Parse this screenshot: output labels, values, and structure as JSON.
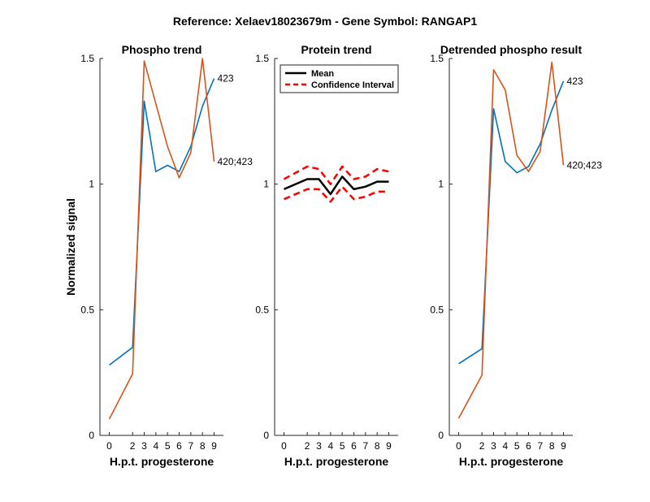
{
  "figure": {
    "title": "Reference:  Xelaev18023679m - Gene Symbol:  RANGAP1"
  },
  "colors": {
    "blue": "#0072BD",
    "orange": "#D95319",
    "black": "#000000",
    "red": "#FF0000"
  },
  "chart_data": [
    {
      "type": "line",
      "title": "Phospho trend",
      "xlabel": "H.p.t. progesterone",
      "ylabel": "Normalized signal",
      "x": [
        0,
        2,
        3,
        4,
        5,
        6,
        7,
        8,
        9
      ],
      "xlim": [
        -0.8,
        9.8
      ],
      "ylim": [
        0,
        1.5
      ],
      "xticks": [
        "0",
        "2",
        "3",
        "4",
        "5",
        "6",
        "7",
        "8",
        "9"
      ],
      "yticks": [
        "0",
        "0.5",
        "1",
        "1.5"
      ],
      "series": [
        {
          "color": "blue",
          "label": "423",
          "values": [
            0.28,
            0.35,
            1.33,
            1.05,
            1.075,
            1.05,
            1.15,
            1.31,
            1.42
          ]
        },
        {
          "color": "orange",
          "label": "420;423",
          "values": [
            0.065,
            0.245,
            1.49,
            1.32,
            1.15,
            1.025,
            1.125,
            1.5,
            1.09
          ]
        }
      ]
    },
    {
      "type": "line",
      "title": "Protein trend",
      "xlabel": "H.p.t. progesterone",
      "x": [
        0,
        2,
        3,
        4,
        5,
        6,
        7,
        8,
        9
      ],
      "xlim": [
        -0.8,
        9.8
      ],
      "ylim": [
        0,
        1.5
      ],
      "xticks": [
        "0",
        "2",
        "3",
        "4",
        "5",
        "6",
        "7",
        "8",
        "9"
      ],
      "yticks": [
        "0",
        "0.5",
        "1",
        "1.5"
      ],
      "legend": {
        "placement": "top-left",
        "entries": [
          "Mean",
          "Confidence Interval"
        ]
      },
      "series": [
        {
          "name": "Mean",
          "color": "black",
          "style": "solid",
          "values": [
            0.98,
            1.02,
            1.02,
            0.96,
            1.03,
            0.98,
            0.99,
            1.01,
            1.01
          ]
        },
        {
          "name": "Confidence Interval",
          "color": "red",
          "style": "dashed",
          "values": [
            1.02,
            1.07,
            1.06,
            1.0,
            1.07,
            1.02,
            1.03,
            1.06,
            1.05
          ]
        },
        {
          "name": "Confidence Interval",
          "color": "red",
          "style": "dashed",
          "values": [
            0.94,
            0.98,
            0.98,
            0.93,
            0.99,
            0.94,
            0.95,
            0.97,
            0.97
          ]
        }
      ]
    },
    {
      "type": "line",
      "title": "Detrended phospho result",
      "xlabel": "H.p.t. progesterone",
      "x": [
        0,
        2,
        3,
        4,
        5,
        6,
        7,
        8,
        9
      ],
      "xlim": [
        -0.8,
        9.8
      ],
      "ylim": [
        0,
        1.5
      ],
      "xticks": [
        "0",
        "2",
        "3",
        "4",
        "5",
        "6",
        "7",
        "8",
        "9"
      ],
      "yticks": [
        "0",
        "0.5",
        "1",
        "1.5"
      ],
      "series": [
        {
          "color": "blue",
          "label": "423",
          "values": [
            0.285,
            0.345,
            1.3,
            1.09,
            1.045,
            1.07,
            1.16,
            1.295,
            1.41
          ]
        },
        {
          "color": "orange",
          "label": "420;423",
          "values": [
            0.068,
            0.24,
            1.455,
            1.375,
            1.115,
            1.05,
            1.13,
            1.485,
            1.075
          ]
        }
      ]
    }
  ]
}
